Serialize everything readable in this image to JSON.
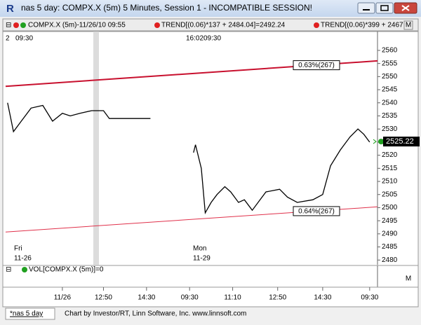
{
  "window": {
    "title": "nas 5 day: COMPX.X (5m) 5 Minutes, Session 1 - INCOMPATIBLE SESSION!"
  },
  "legend": {
    "symbol": "COMPX.X (5m)-11/26/10 09:55",
    "trend1": "TREND[(0.06)*137 + 2484.04]=2492.24",
    "trend2": "TREND[(0.06)*399 + 2467",
    "panel_button": "M"
  },
  "volume": {
    "label": "VOL[COMPX.X (5m)]=0",
    "panel_button": "M"
  },
  "footer": {
    "tab": "*nas 5 day",
    "credit": "Chart by Investor/RT, Linn Software, Inc. www.linnsoft.com"
  },
  "chart_data": {
    "type": "line",
    "top_labels": [
      "2",
      "09:30",
      "16:02",
      "09:30"
    ],
    "day_labels": [
      "Fri",
      "11-26",
      "Mon",
      "11-29"
    ],
    "xlim": [
      0,
      190
    ],
    "xticks": [
      {
        "value": 29,
        "label": "11/26"
      },
      {
        "value": 50,
        "label": "12:50"
      },
      {
        "value": 72,
        "label": "14:30"
      },
      {
        "value": 94,
        "label": "09:30"
      },
      {
        "value": 116,
        "label": "11:10"
      },
      {
        "value": 139,
        "label": "12:50"
      },
      {
        "value": 162,
        "label": "14:30"
      },
      {
        "value": 186,
        "label": "09:30"
      }
    ],
    "ylim": [
      2478.2,
      2567.2
    ],
    "yticks": [
      2480,
      2485,
      2490,
      2495,
      2500,
      2505,
      2510,
      2515,
      2520,
      2525,
      2530,
      2535,
      2540,
      2545,
      2550,
      2555,
      2560
    ],
    "series": [
      {
        "name": "COMPX.X (5m)",
        "color": "#000000",
        "x": [
          1,
          4,
          8,
          13,
          19,
          24,
          29,
          33,
          38,
          44,
          50,
          53,
          74,
          75,
          96,
          97,
          100,
          102,
          105,
          108,
          112,
          115,
          119,
          122,
          126,
          130,
          133,
          140,
          144,
          149,
          157,
          162,
          166,
          171,
          176,
          180,
          183,
          186
        ],
        "values": [
          2540,
          2529,
          2533,
          2538,
          2539,
          2533,
          2536,
          2535,
          2536,
          2537,
          2537,
          2534,
          2534,
          null,
          2521,
          2524,
          2515,
          2498,
          2502,
          2505,
          2508,
          2506,
          2502,
          2503,
          2499,
          2503,
          2506,
          2507,
          2504,
          2502,
          2503,
          2505,
          2516,
          2522,
          2527,
          2530,
          2528,
          2525
        ]
      },
      {
        "name": "TREND upper",
        "color": "#c8102e",
        "x": [
          0,
          190
        ],
        "values": [
          2546.3,
          2556
        ]
      },
      {
        "name": "TREND lower",
        "color": "#e0304a",
        "x": [
          0,
          190
        ],
        "values": [
          2490.7,
          2500.3
        ]
      }
    ],
    "annotations": [
      "0.63%(267)",
      "0.64%(267)"
    ],
    "last_price": 2525.22
  }
}
